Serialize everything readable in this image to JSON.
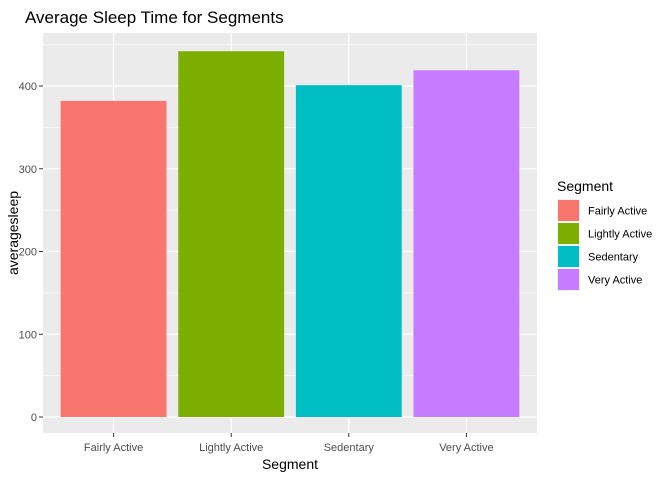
{
  "chart_data": {
    "type": "bar",
    "title": "Average Sleep Time for Segments",
    "xlabel": "Segment",
    "ylabel": "averagesleep",
    "categories": [
      "Fairly Active",
      "Lightly Active",
      "Sedentary",
      "Very Active"
    ],
    "values": [
      382,
      442,
      401,
      419
    ],
    "colors": [
      "#F8766D",
      "#7CAE00",
      "#00BFC4",
      "#C77CFF"
    ],
    "ylim": [
      0,
      465
    ],
    "yticks": [
      0,
      100,
      200,
      300,
      400
    ],
    "grid": true,
    "legend": {
      "title": "Segment",
      "position": "right",
      "entries": [
        "Fairly Active",
        "Lightly Active",
        "Sedentary",
        "Very Active"
      ]
    }
  }
}
